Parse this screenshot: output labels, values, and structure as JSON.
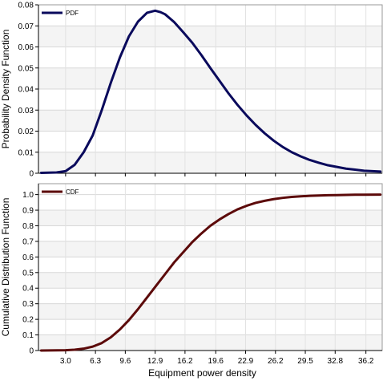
{
  "chart_data": [
    {
      "type": "line",
      "ylabel": "Probability Density Function",
      "xlabel": "",
      "xlim": [
        0,
        38
      ],
      "ylim": [
        0,
        0.08
      ],
      "yticks": [
        0,
        0.01,
        0.02,
        0.03,
        0.04,
        0.05,
        0.06,
        0.07,
        0.08
      ],
      "ytick_labels": [
        "0",
        "0.01",
        "0.02",
        "0.03",
        "0.04",
        "0.05",
        "0.06",
        "0.07",
        "0.08"
      ],
      "grid": true,
      "legend": "top-left",
      "series": [
        {
          "name": "PDF",
          "color": "#0a0a5c",
          "x": [
            0.3,
            2,
            3,
            4,
            5,
            6,
            7,
            8,
            9,
            10,
            11,
            12,
            12.9,
            13.5,
            14,
            15,
            16,
            17,
            18,
            19,
            20,
            21,
            22,
            23,
            24,
            25,
            26,
            27,
            28,
            29,
            30,
            31,
            32,
            33,
            34,
            35,
            36,
            37.8
          ],
          "values": [
            0.0002,
            0.0004,
            0.001,
            0.004,
            0.01,
            0.018,
            0.03,
            0.043,
            0.055,
            0.065,
            0.072,
            0.0762,
            0.0772,
            0.0765,
            0.0755,
            0.0718,
            0.067,
            0.062,
            0.0562,
            0.05,
            0.044,
            0.038,
            0.0325,
            0.0275,
            0.023,
            0.019,
            0.0155,
            0.0125,
            0.01,
            0.008,
            0.0063,
            0.005,
            0.0038,
            0.003,
            0.0022,
            0.0017,
            0.0012,
            0.0008
          ]
        }
      ]
    },
    {
      "type": "line",
      "ylabel": "Cumulative Distribution Function",
      "xlabel": "Equipment power density",
      "xlim": [
        0,
        38
      ],
      "ylim": [
        0,
        1.07
      ],
      "xticks": [
        3.0,
        6.3,
        9.6,
        12.9,
        16.2,
        19.6,
        22.9,
        26.2,
        29.5,
        32.8,
        36.2
      ],
      "xtick_labels": [
        "3.0",
        "6.3",
        "9.6",
        "12.9",
        "16.2",
        "19.6",
        "22.9",
        "26.2",
        "29.5",
        "32.8",
        "36.2"
      ],
      "yticks": [
        0,
        0.1,
        0.2,
        0.3,
        0.4,
        0.5,
        0.6,
        0.7,
        0.8,
        0.9,
        1.0
      ],
      "ytick_labels": [
        "0",
        "0.1",
        "0.2",
        "0.3",
        "0.4",
        "0.5",
        "0.6",
        "0.7",
        "0.8",
        "0.9",
        "1.0"
      ],
      "grid": true,
      "legend": "top-left",
      "series": [
        {
          "name": "CDF",
          "color": "#5c0a0a",
          "x": [
            0.3,
            3,
            4,
            5,
            6,
            7,
            8,
            9,
            10,
            11,
            12,
            13,
            14,
            15,
            16,
            17,
            18,
            19,
            20,
            21,
            22,
            23,
            24,
            25,
            26,
            27,
            28,
            29,
            30,
            31,
            32,
            33,
            34,
            35,
            36,
            37.8
          ],
          "values": [
            0,
            0.002,
            0.005,
            0.012,
            0.025,
            0.048,
            0.085,
            0.135,
            0.195,
            0.265,
            0.34,
            0.415,
            0.49,
            0.565,
            0.63,
            0.695,
            0.75,
            0.8,
            0.84,
            0.875,
            0.905,
            0.928,
            0.947,
            0.96,
            0.971,
            0.979,
            0.985,
            0.989,
            0.992,
            0.994,
            0.996,
            0.997,
            0.998,
            0.999,
            0.9995,
            1.0
          ]
        }
      ]
    }
  ]
}
